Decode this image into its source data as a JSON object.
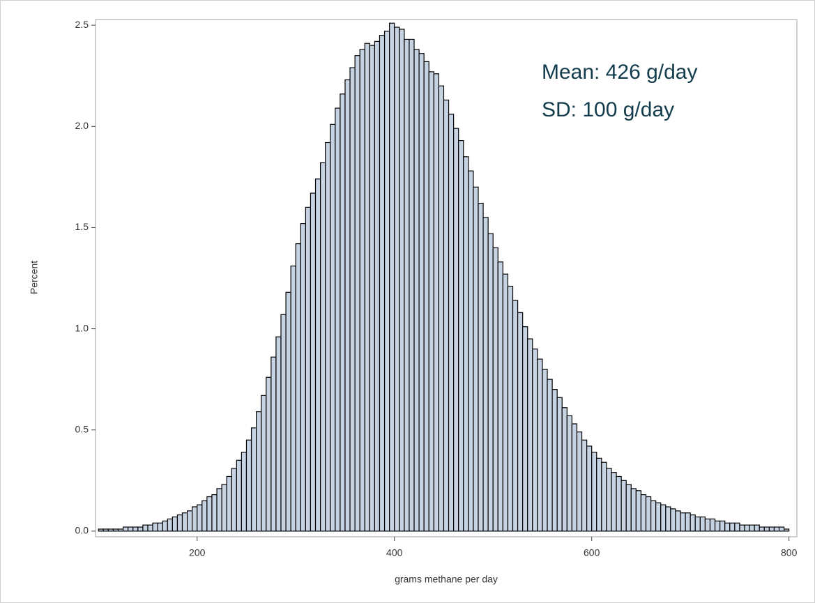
{
  "chart_data": {
    "type": "histogram",
    "x_label": "grams methane per day",
    "y_label": "Percent",
    "annotations": [
      "Mean: 426 g/day",
      "SD: 100 g/day"
    ],
    "color": "#c6d3e3",
    "edge_color": "#000000",
    "bins": [
      100,
      105,
      110,
      115,
      120,
      125,
      130,
      135,
      140,
      145,
      150,
      155,
      160,
      165,
      170,
      175,
      180,
      185,
      190,
      195,
      200,
      205,
      210,
      215,
      220,
      225,
      230,
      235,
      240,
      245,
      250,
      255,
      260,
      265,
      270,
      275,
      280,
      285,
      290,
      295,
      300,
      305,
      310,
      315,
      320,
      325,
      330,
      335,
      340,
      345,
      350,
      355,
      360,
      365,
      370,
      375,
      380,
      385,
      390,
      395,
      400,
      405,
      410,
      415,
      420,
      425,
      430,
      435,
      440,
      445,
      450,
      455,
      460,
      465,
      470,
      475,
      480,
      485,
      490,
      495,
      500,
      505,
      510,
      515,
      520,
      525,
      530,
      535,
      540,
      545,
      550,
      555,
      560,
      565,
      570,
      575,
      580,
      585,
      590,
      595,
      600,
      605,
      610,
      615,
      620,
      625,
      630,
      635,
      640,
      645,
      650,
      655,
      660,
      665,
      670,
      675,
      680,
      685,
      690,
      695,
      700,
      705,
      710,
      715,
      720,
      725,
      730,
      735,
      740,
      745,
      750,
      755,
      760,
      765,
      770,
      775,
      780,
      785,
      790,
      795,
      800
    ],
    "values": [
      0.01,
      0.01,
      0.01,
      0.01,
      0.01,
      0.02,
      0.02,
      0.02,
      0.02,
      0.03,
      0.03,
      0.04,
      0.04,
      0.05,
      0.06,
      0.07,
      0.08,
      0.09,
      0.1,
      0.12,
      0.13,
      0.15,
      0.17,
      0.18,
      0.21,
      0.23,
      0.27,
      0.31,
      0.35,
      0.39,
      0.45,
      0.51,
      0.59,
      0.67,
      0.76,
      0.86,
      0.96,
      1.07,
      1.18,
      1.31,
      1.42,
      1.52,
      1.6,
      1.67,
      1.74,
      1.82,
      1.92,
      2.01,
      2.09,
      2.16,
      2.23,
      2.29,
      2.35,
      2.38,
      2.41,
      2.4,
      2.42,
      2.45,
      2.47,
      2.51,
      2.49,
      2.48,
      2.43,
      2.43,
      2.38,
      2.36,
      2.32,
      2.27,
      2.26,
      2.2,
      2.13,
      2.06,
      1.99,
      1.93,
      1.85,
      1.78,
      1.7,
      1.62,
      1.55,
      1.47,
      1.4,
      1.33,
      1.27,
      1.21,
      1.14,
      1.08,
      1.01,
      0.95,
      0.9,
      0.85,
      0.8,
      0.75,
      0.7,
      0.66,
      0.61,
      0.57,
      0.53,
      0.49,
      0.45,
      0.42,
      0.39,
      0.36,
      0.34,
      0.31,
      0.29,
      0.27,
      0.25,
      0.23,
      0.21,
      0.2,
      0.18,
      0.17,
      0.15,
      0.14,
      0.13,
      0.12,
      0.11,
      0.1,
      0.09,
      0.09,
      0.08,
      0.07,
      0.07,
      0.06,
      0.06,
      0.05,
      0.05,
      0.04,
      0.04,
      0.04,
      0.03,
      0.03,
      0.03,
      0.03,
      0.02,
      0.02,
      0.02,
      0.02,
      0.02,
      0.01
    ],
    "xlim": [
      97,
      808
    ],
    "xticks": [
      200,
      400,
      600,
      800
    ],
    "ylim": [
      -0.028,
      2.528
    ],
    "yticks": [
      {
        "value": 0,
        "label": "0.0"
      },
      0.5,
      {
        "value": 1,
        "label": "1.0"
      },
      1.5,
      {
        "value": 2,
        "label": "2.0"
      },
      2.5
    ]
  }
}
